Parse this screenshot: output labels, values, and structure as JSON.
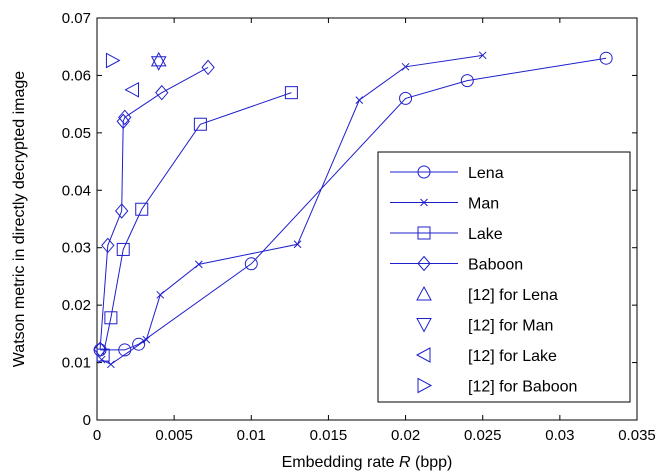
{
  "chart_data": {
    "type": "line",
    "xlabel_prefix": "Embedding rate ",
    "xlabel_var": "R",
    "xlabel_suffix": " (bpp)",
    "ylabel": "Watson metric in directly decrypted image",
    "xlim": [
      0,
      0.035
    ],
    "ylim": [
      0,
      0.07
    ],
    "xticks": [
      0,
      0.005,
      0.01,
      0.015,
      0.02,
      0.025,
      0.03,
      0.035
    ],
    "xtick_labels": [
      "0",
      "0.005",
      "0.01",
      "0.015",
      "0.02",
      "0.025",
      "0.03",
      "0.035"
    ],
    "yticks": [
      0,
      0.01,
      0.02,
      0.03,
      0.04,
      0.05,
      0.06,
      0.07
    ],
    "ytick_labels": [
      "0",
      "0.01",
      "0.02",
      "0.03",
      "0.04",
      "0.05",
      "0.06",
      "0.07"
    ],
    "grid": false,
    "legend_position": "bottom-right",
    "color": "#1f1fcc",
    "series": [
      {
        "name": "Lena",
        "marker": "circle",
        "line": true,
        "x": [
          0.0002,
          0.0018,
          0.0027,
          0.01,
          0.02,
          0.024,
          0.033
        ],
        "y": [
          0.0122,
          0.0122,
          0.0132,
          0.0272,
          0.056,
          0.0591,
          0.063
        ]
      },
      {
        "name": "Man",
        "marker": "x",
        "line": true,
        "x": [
          0.0003,
          0.0009,
          0.0032,
          0.0041,
          0.0066,
          0.013,
          0.017,
          0.02,
          0.025
        ],
        "y": [
          0.0105,
          0.0097,
          0.014,
          0.0218,
          0.0271,
          0.0306,
          0.0557,
          0.0615,
          0.0635
        ]
      },
      {
        "name": "Lake",
        "marker": "square",
        "line": true,
        "x": [
          0.0004,
          0.0009,
          0.0017,
          0.0029,
          0.0067,
          0.0126
        ],
        "y": [
          0.0113,
          0.0178,
          0.0297,
          0.0367,
          0.0515,
          0.057
        ]
      },
      {
        "name": "Baboon",
        "marker": "diamond",
        "line": true,
        "x": [
          0.0002,
          0.0007,
          0.0016,
          0.0017,
          0.0018,
          0.0042,
          0.0072
        ],
        "y": [
          0.0123,
          0.0304,
          0.0364,
          0.052,
          0.0527,
          0.057,
          0.0614
        ]
      },
      {
        "name": "[12] for Lena",
        "marker": "triangle-up",
        "line": false,
        "x": [
          0.004
        ],
        "y": [
          0.0627
        ]
      },
      {
        "name": "[12] for Man",
        "marker": "triangle-down",
        "line": false,
        "x": [
          0.004
        ],
        "y": [
          0.0622
        ]
      },
      {
        "name": "[12] for Lake",
        "marker": "triangle-left",
        "line": false,
        "x": [
          0.0023
        ],
        "y": [
          0.0575
        ]
      },
      {
        "name": "[12] for Baboon",
        "marker": "triangle-right",
        "line": false,
        "x": [
          0.001
        ],
        "y": [
          0.0626
        ]
      }
    ]
  }
}
